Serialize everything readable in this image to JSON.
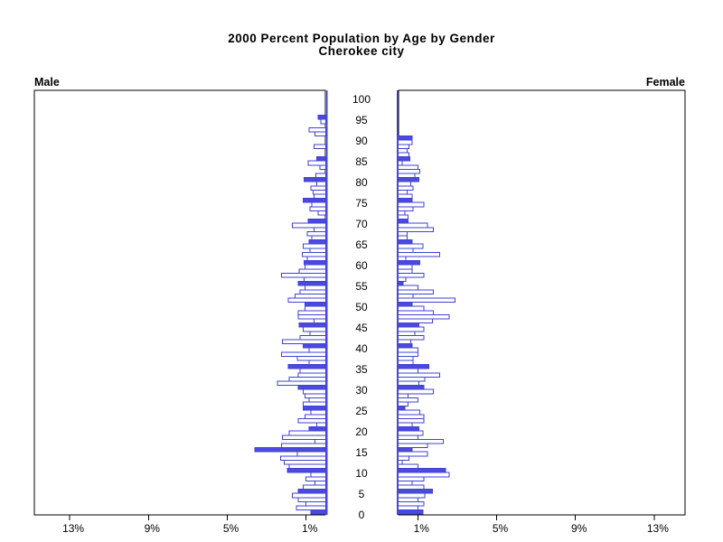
{
  "title": {
    "line1": "2000 Percent Population by Age by Gender",
    "line2": "Cherokee city"
  },
  "panel_labels": {
    "left": "Male",
    "right": "Female"
  },
  "colors": {
    "bar_fill_solid": "#4a4ae0",
    "bar_outline": "#4040d4",
    "bar_fill_open": "#ffffff",
    "axis_line_blue": "#4a4ae0",
    "frame_black": "#000000",
    "background": "#ffffff",
    "text": "#000000"
  },
  "chart_data": {
    "type": "bar",
    "variant": "population-pyramid",
    "title": "2000 Percent Population by Age by Gender",
    "subtitle": "Cherokee city",
    "unit": "percent of total population, single year of age",
    "age_axis": {
      "min": 0,
      "max": 100,
      "label_step": 5,
      "tick_labels": [
        "0",
        "5",
        "10",
        "15",
        "20",
        "25",
        "30",
        "35",
        "40",
        "45",
        "50",
        "55",
        "60",
        "65",
        "70",
        "75",
        "80",
        "85",
        "90",
        "95",
        "100"
      ]
    },
    "pct_axis": {
      "tick_values": [
        1,
        5,
        9,
        13
      ],
      "tick_labels": [
        "1%",
        "5%",
        "9%",
        "13%"
      ],
      "max_pct": 14.7,
      "note": "male axis increases right-to-left, female axis increases left-to-right"
    },
    "highlight_rule": "bars for ages divisible by 5 are solid blue; all other ages are white with blue outline",
    "series": [
      {
        "name": "Male",
        "side": "left",
        "values": [
          0.75,
          1.5,
          1.0,
          1.4,
          1.7,
          1.4,
          1.15,
          0.55,
          1.0,
          0.75,
          1.95,
          1.85,
          2.1,
          2.3,
          1.45,
          3.6,
          2.25,
          0.55,
          2.2,
          1.85,
          0.85,
          0.45,
          1.4,
          1.05,
          0.75,
          1.15,
          1.15,
          0.85,
          1.05,
          1.15,
          1.4,
          2.45,
          1.85,
          1.4,
          1.3,
          1.9,
          0.85,
          1.45,
          2.25,
          0.85,
          1.15,
          2.2,
          1.3,
          0.8,
          1.15,
          1.35,
          0.6,
          1.4,
          1.4,
          1.05,
          1.05,
          1.9,
          1.55,
          1.3,
          1.05,
          1.4,
          1.1,
          2.25,
          1.35,
          1.05,
          1.1,
          0.95,
          1.2,
          0.8,
          1.15,
          0.85,
          0.7,
          0.95,
          0.6,
          1.7,
          0.9,
          0,
          0.4,
          0.8,
          0.7,
          1.15,
          0.6,
          0.65,
          0.75,
          0.45,
          1.1,
          0.5,
          0,
          0.3,
          0.9,
          0.45,
          0,
          0,
          0.6,
          0,
          0,
          0.55,
          0.85,
          0,
          0.25,
          0.4,
          0,
          0,
          0,
          0,
          0
        ]
      },
      {
        "name": "Female",
        "side": "right",
        "values": [
          1.25,
          1.0,
          1.3,
          1.0,
          1.35,
          1.75,
          1.3,
          0.7,
          1.3,
          2.6,
          2.4,
          1.0,
          0.2,
          0.55,
          1.5,
          0.7,
          1.5,
          2.3,
          1.0,
          1.25,
          1.05,
          0.7,
          1.3,
          1.3,
          1.1,
          0.35,
          0.5,
          1.0,
          0.5,
          1.8,
          1.3,
          1.05,
          1.35,
          2.1,
          1.0,
          1.55,
          0.75,
          0.75,
          1.0,
          1.0,
          0.7,
          0.65,
          1.3,
          0.85,
          1.3,
          1.05,
          1.75,
          2.6,
          1.8,
          1.3,
          0.7,
          2.9,
          0.75,
          1.8,
          1.0,
          0.25,
          0.4,
          1.3,
          0.7,
          0.7,
          1.1,
          0.4,
          2.1,
          0.75,
          1.25,
          0.7,
          0.45,
          0.45,
          1.8,
          1.5,
          0.5,
          0.5,
          0.35,
          0.75,
          1.3,
          0.7,
          0.7,
          0.45,
          0.75,
          0.65,
          1.05,
          0.85,
          1.1,
          1.0,
          0.2,
          0.6,
          0.55,
          0.45,
          0.55,
          0.7,
          0.7,
          0,
          0,
          0,
          0,
          0,
          0,
          0,
          0,
          0,
          0
        ]
      }
    ],
    "legend": "none",
    "grid": "off"
  }
}
